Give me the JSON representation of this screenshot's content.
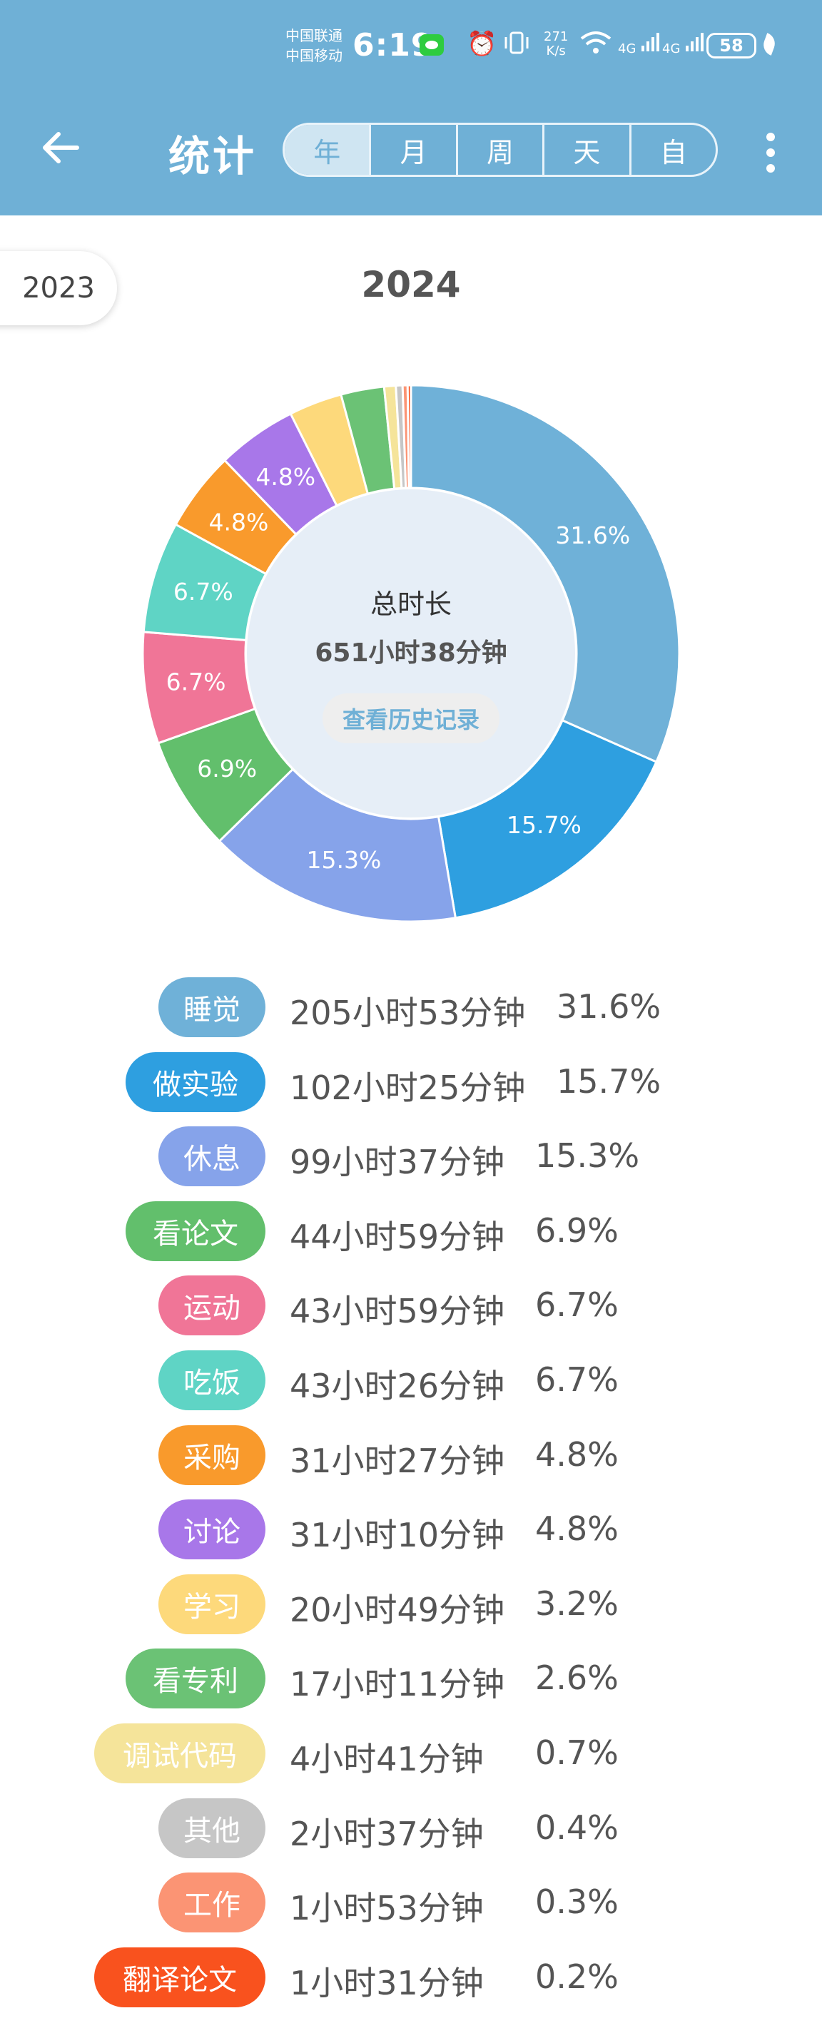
{
  "status_bar": {
    "carrier_1": "中国联通",
    "carrier_2": "中国移动",
    "time": "6:19",
    "net_speed_value": "271",
    "net_speed_unit": "K/s",
    "net_1": "4G",
    "net_2": "4G",
    "battery": "58"
  },
  "header": {
    "title": "统计",
    "tabs": [
      "年",
      "月",
      "周",
      "天",
      "自"
    ],
    "active_tab": "年"
  },
  "year_nav": {
    "previous_year": "2023",
    "current_year": "2024"
  },
  "summary": {
    "label": "总时长",
    "total": "651小时38分钟",
    "history_button": "查看历史记录"
  },
  "categories": [
    {
      "name": "睡觉",
      "duration": "205小时53分钟",
      "percent": "31.6%",
      "value": 31.6,
      "color": "#6fb1d8",
      "show_label": true
    },
    {
      "name": "做实验",
      "duration": "102小时25分钟",
      "percent": "15.7%",
      "value": 15.7,
      "color": "#2e9fe0",
      "show_label": true
    },
    {
      "name": "休息",
      "duration": "99小时37分钟",
      "percent": "15.3%",
      "value": 15.3,
      "color": "#86a3ea",
      "show_label": true
    },
    {
      "name": "看论文",
      "duration": "44小时59分钟",
      "percent": "6.9%",
      "value": 6.9,
      "color": "#62bf6c",
      "show_label": true
    },
    {
      "name": "运动",
      "duration": "43小时59分钟",
      "percent": "6.7%",
      "value": 6.7,
      "color": "#f07597",
      "show_label": true
    },
    {
      "name": "吃饭",
      "duration": "43小时26分钟",
      "percent": "6.7%",
      "value": 6.7,
      "color": "#5fd4c5",
      "show_label": true
    },
    {
      "name": "采购",
      "duration": "31小时27分钟",
      "percent": "4.8%",
      "value": 4.8,
      "color": "#f99a2c",
      "show_label": true
    },
    {
      "name": "讨论",
      "duration": "31小时10分钟",
      "percent": "4.8%",
      "value": 4.8,
      "color": "#a877e9",
      "show_label": true
    },
    {
      "name": "学习",
      "duration": "20小时49分钟",
      "percent": "3.2%",
      "value": 3.2,
      "color": "#fdd97b",
      "show_label": false
    },
    {
      "name": "看专利",
      "duration": "17小时11分钟",
      "percent": "2.6%",
      "value": 2.6,
      "color": "#6bc275",
      "show_label": false
    },
    {
      "name": "调试代码",
      "duration": "4小时41分钟",
      "percent": "0.7%",
      "value": 0.7,
      "color": "#f5e49a",
      "show_label": false
    },
    {
      "name": "其他",
      "duration": "2小时37分钟",
      "percent": "0.4%",
      "value": 0.4,
      "color": "#c6c6c6",
      "show_label": false
    },
    {
      "name": "工作",
      "duration": "1小时53分钟",
      "percent": "0.3%",
      "value": 0.3,
      "color": "#fb9474",
      "show_label": false
    },
    {
      "name": "翻译论文",
      "duration": "1小时31分钟",
      "percent": "0.2%",
      "value": 0.2,
      "color": "#f9521e",
      "show_label": false
    }
  ]
}
